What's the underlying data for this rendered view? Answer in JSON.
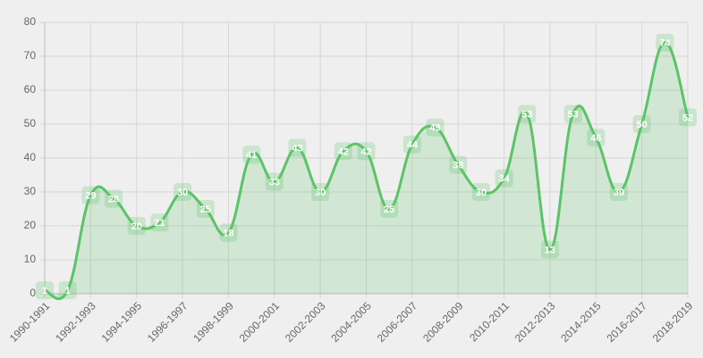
{
  "chart_data": {
    "type": "area",
    "categories": [
      "1990-1991",
      null,
      "1992-1993",
      null,
      "1994-1995",
      null,
      "1996-1997",
      null,
      "1998-1999",
      null,
      "2000-2001",
      null,
      "2002-2003",
      null,
      "2004-2005",
      null,
      "2006-2007",
      null,
      "2008-2009",
      null,
      "2010-2011",
      null,
      "2012-2013",
      null,
      "2014-2015",
      null,
      "2016-2017",
      null,
      "2018-2019"
    ],
    "values": [
      1,
      1,
      29,
      28,
      20,
      21,
      30,
      25,
      18,
      41,
      33,
      43,
      30,
      42,
      42,
      25,
      44,
      49,
      38,
      30,
      34,
      53,
      13,
      53,
      46,
      30,
      50,
      74,
      52
    ],
    "color": "#5ac466",
    "ylim": [
      0,
      80
    ],
    "yticks": [
      0,
      10,
      20,
      30,
      40,
      50,
      60,
      70,
      80
    ],
    "grid": true
  }
}
